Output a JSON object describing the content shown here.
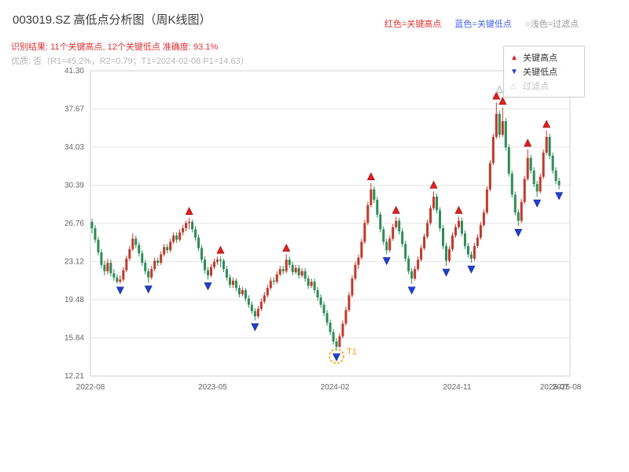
{
  "header": {
    "title": "003019.SZ 高低点分析图（周K线图）",
    "legend_inline": {
      "high": "红色=关键高点",
      "low": "蓝色=关键低点",
      "filtered": "○浅色=过滤点"
    },
    "result_line": "识别结果: 11个关键高点, 12个关键低点  准确度: 93.1%",
    "quality_line": "优质: 否（R1=45.2%，R2=0.79；T1=2024-02-08 P1=14.63）"
  },
  "legend_box": {
    "items": [
      {
        "label": "关键高点",
        "marker": "up-triangle"
      },
      {
        "label": "关键低点",
        "marker": "down-triangle"
      },
      {
        "label": "过滤点",
        "marker": "up-triangle-outline"
      }
    ]
  },
  "colors": {
    "up_candle": "#c0392b",
    "down_candle": "#2e8b57",
    "key_high": "#e02020",
    "key_high_edge": "#8b0000",
    "key_low": "#2040d0",
    "key_low_edge": "#102080",
    "filtered_fill": "#f8f8f8",
    "filtered_edge": "#b5b5b5",
    "grid": "#e5e5e5",
    "frame": "#d0d0d0",
    "tick_text": "#666666",
    "t1_orange": "#f59f00"
  },
  "chart_data": {
    "type": "candlestick",
    "symbol": "003019.SZ",
    "frequency": "weekly",
    "title": "003019.SZ 高低点分析图（周K线图）",
    "grid": true,
    "ylim": [
      12.21,
      41.3
    ],
    "y_ticks": [
      "12.21",
      "15.84",
      "19.48",
      "23.12",
      "26.76",
      "30.39",
      "34.03",
      "37.67",
      "41.30"
    ],
    "x_range_weeks": 153,
    "x_ticks": [
      {
        "week": 0,
        "label": "2022-08"
      },
      {
        "week": 39,
        "label": "2023-05"
      },
      {
        "week": 78,
        "label": "2024-02"
      },
      {
        "week": 117,
        "label": "2024-11"
      },
      {
        "week": 148,
        "label": "2025-07"
      },
      {
        "week": 152,
        "label": "2025-08"
      }
    ],
    "recognition": {
      "key_high_count": 11,
      "key_low_count": 12,
      "accuracy_pct": 93.1,
      "premium": "否",
      "r1_pct": 45.2,
      "r2": 0.79,
      "t1_date": "2024-02-08",
      "p1": 14.63
    },
    "candles": [
      [
        26.9,
        27.2,
        25.8,
        26.3
      ],
      [
        26.3,
        26.6,
        24.9,
        25.2
      ],
      [
        25.2,
        25.5,
        23.7,
        24.0
      ],
      [
        24.0,
        24.3,
        22.5,
        22.8
      ],
      [
        22.8,
        23.2,
        21.8,
        22.2
      ],
      [
        22.2,
        23.4,
        21.9,
        23.0
      ],
      [
        23.0,
        23.3,
        21.7,
        22.0
      ],
      [
        22.0,
        22.4,
        21.3,
        21.6
      ],
      [
        21.6,
        21.9,
        21.0,
        21.2
      ],
      [
        21.2,
        21.8,
        21.0,
        21.4
      ],
      [
        21.4,
        22.6,
        21.2,
        22.3
      ],
      [
        22.3,
        23.7,
        22.1,
        23.4
      ],
      [
        23.4,
        24.6,
        23.2,
        24.3
      ],
      [
        24.3,
        25.8,
        24.1,
        25.3
      ],
      [
        25.3,
        25.6,
        24.4,
        24.7
      ],
      [
        24.7,
        25.0,
        23.6,
        23.9
      ],
      [
        23.9,
        24.2,
        22.7,
        23.0
      ],
      [
        23.0,
        23.3,
        21.9,
        22.2
      ],
      [
        22.2,
        22.5,
        21.1,
        21.6
      ],
      [
        21.6,
        22.7,
        21.4,
        22.4
      ],
      [
        22.4,
        23.5,
        22.2,
        23.2
      ],
      [
        23.2,
        23.5,
        22.7,
        23.0
      ],
      [
        23.0,
        24.1,
        22.8,
        23.8
      ],
      [
        23.8,
        24.8,
        23.6,
        24.5
      ],
      [
        24.5,
        24.8,
        23.9,
        24.2
      ],
      [
        24.2,
        25.3,
        24.0,
        25.0
      ],
      [
        25.0,
        25.9,
        24.8,
        25.6
      ],
      [
        25.6,
        25.9,
        24.9,
        25.2
      ],
      [
        25.2,
        26.2,
        25.0,
        25.9
      ],
      [
        25.9,
        26.6,
        25.6,
        26.3
      ],
      [
        26.3,
        27.0,
        26.0,
        26.8
      ],
      [
        26.8,
        27.3,
        26.2,
        26.9
      ],
      [
        26.9,
        27.1,
        25.9,
        26.2
      ],
      [
        26.2,
        26.5,
        25.1,
        25.4
      ],
      [
        25.4,
        25.7,
        24.1,
        24.4
      ],
      [
        24.4,
        24.7,
        23.0,
        23.3
      ],
      [
        23.3,
        23.6,
        22.0,
        22.3
      ],
      [
        22.3,
        22.6,
        21.4,
        21.8
      ],
      [
        21.8,
        22.9,
        21.6,
        22.6
      ],
      [
        22.6,
        23.4,
        22.4,
        23.1
      ],
      [
        23.1,
        23.6,
        22.8,
        23.3
      ],
      [
        23.3,
        23.6,
        22.6,
        23.2
      ],
      [
        23.2,
        23.4,
        22.1,
        22.4
      ],
      [
        22.4,
        22.7,
        21.3,
        21.6
      ],
      [
        21.6,
        21.9,
        20.6,
        20.9
      ],
      [
        20.9,
        21.6,
        20.6,
        21.3
      ],
      [
        21.3,
        21.5,
        20.3,
        20.6
      ],
      [
        20.6,
        20.9,
        19.7,
        20.0
      ],
      [
        20.0,
        20.7,
        19.8,
        20.4
      ],
      [
        20.4,
        20.6,
        19.3,
        19.6
      ],
      [
        19.6,
        19.9,
        18.7,
        19.0
      ],
      [
        19.0,
        19.3,
        18.1,
        18.4
      ],
      [
        18.4,
        18.7,
        17.5,
        17.9
      ],
      [
        17.9,
        18.9,
        17.7,
        18.6
      ],
      [
        18.6,
        19.6,
        18.4,
        19.3
      ],
      [
        19.3,
        20.2,
        19.1,
        19.9
      ],
      [
        19.9,
        20.9,
        19.7,
        20.6
      ],
      [
        20.6,
        21.6,
        20.4,
        21.3
      ],
      [
        21.3,
        21.6,
        20.9,
        21.2
      ],
      [
        21.2,
        22.2,
        21.0,
        21.9
      ],
      [
        21.9,
        22.7,
        21.7,
        22.4
      ],
      [
        22.4,
        22.7,
        21.9,
        22.2
      ],
      [
        22.2,
        23.8,
        22.0,
        23.3
      ],
      [
        23.3,
        23.6,
        22.5,
        22.8
      ],
      [
        22.8,
        23.1,
        21.8,
        22.1
      ],
      [
        22.1,
        22.8,
        21.9,
        22.5
      ],
      [
        22.5,
        22.8,
        21.5,
        21.8
      ],
      [
        21.8,
        22.5,
        21.6,
        22.2
      ],
      [
        22.2,
        22.5,
        21.2,
        21.5
      ],
      [
        21.5,
        21.8,
        20.5,
        20.8
      ],
      [
        20.8,
        21.5,
        20.6,
        21.2
      ],
      [
        21.2,
        21.5,
        20.1,
        20.4
      ],
      [
        20.4,
        20.7,
        19.4,
        19.7
      ],
      [
        19.7,
        20.0,
        18.7,
        19.0
      ],
      [
        19.0,
        19.3,
        17.9,
        18.2
      ],
      [
        18.2,
        18.5,
        17.0,
        17.3
      ],
      [
        17.3,
        17.6,
        16.1,
        16.4
      ],
      [
        16.4,
        16.7,
        15.2,
        15.5
      ],
      [
        15.5,
        15.8,
        14.63,
        15.0
      ],
      [
        15.0,
        16.3,
        14.9,
        16.0
      ],
      [
        16.0,
        17.5,
        15.8,
        17.2
      ],
      [
        17.2,
        18.8,
        17.0,
        18.5
      ],
      [
        18.5,
        20.2,
        18.3,
        19.9
      ],
      [
        19.9,
        21.8,
        19.7,
        21.5
      ],
      [
        21.5,
        23.1,
        21.3,
        22.8
      ],
      [
        22.8,
        23.8,
        22.4,
        23.5
      ],
      [
        23.5,
        25.3,
        23.3,
        25.0
      ],
      [
        25.0,
        27.1,
        24.8,
        26.8
      ],
      [
        26.8,
        28.8,
        26.6,
        28.5
      ],
      [
        28.5,
        30.6,
        28.3,
        30.0
      ],
      [
        30.0,
        30.3,
        28.7,
        29.0
      ],
      [
        29.0,
        29.3,
        27.3,
        27.6
      ],
      [
        27.6,
        27.9,
        25.9,
        26.2
      ],
      [
        26.2,
        26.5,
        24.7,
        25.0
      ],
      [
        25.0,
        25.3,
        23.8,
        24.2
      ],
      [
        24.2,
        25.6,
        24.0,
        25.3
      ],
      [
        25.3,
        26.7,
        25.1,
        26.4
      ],
      [
        26.4,
        27.4,
        26.2,
        27.0
      ],
      [
        27.0,
        27.3,
        25.7,
        26.0
      ],
      [
        26.0,
        26.3,
        24.5,
        24.8
      ],
      [
        24.8,
        25.1,
        23.1,
        23.4
      ],
      [
        23.4,
        23.7,
        21.9,
        22.2
      ],
      [
        22.2,
        22.5,
        21.0,
        21.5
      ],
      [
        21.5,
        22.7,
        21.3,
        22.4
      ],
      [
        22.4,
        23.6,
        22.2,
        23.3
      ],
      [
        23.3,
        24.7,
        23.1,
        24.4
      ],
      [
        24.4,
        25.8,
        24.2,
        25.5
      ],
      [
        25.5,
        27.1,
        25.3,
        26.8
      ],
      [
        26.8,
        28.5,
        26.6,
        28.2
      ],
      [
        28.2,
        29.8,
        28.0,
        29.3
      ],
      [
        29.3,
        29.6,
        27.7,
        28.0
      ],
      [
        28.0,
        28.3,
        26.0,
        26.3
      ],
      [
        26.3,
        26.6,
        24.3,
        24.6
      ],
      [
        24.6,
        24.9,
        22.7,
        23.2
      ],
      [
        23.2,
        24.6,
        23.0,
        24.3
      ],
      [
        24.3,
        25.9,
        24.1,
        25.6
      ],
      [
        25.6,
        26.7,
        25.4,
        26.4
      ],
      [
        26.4,
        27.4,
        26.2,
        27.0
      ],
      [
        27.0,
        27.3,
        25.5,
        25.8
      ],
      [
        25.8,
        26.1,
        24.3,
        24.6
      ],
      [
        24.6,
        24.9,
        23.5,
        23.8
      ],
      [
        23.8,
        24.1,
        23.0,
        23.4
      ],
      [
        23.4,
        24.9,
        23.2,
        24.6
      ],
      [
        24.6,
        25.7,
        24.4,
        25.4
      ],
      [
        25.4,
        26.9,
        25.2,
        26.6
      ],
      [
        26.6,
        28.1,
        26.4,
        27.8
      ],
      [
        27.8,
        30.3,
        27.6,
        30.0
      ],
      [
        30.0,
        32.8,
        29.8,
        32.5
      ],
      [
        32.5,
        35.3,
        32.3,
        35.0
      ],
      [
        35.0,
        38.3,
        34.8,
        37.2
      ],
      [
        37.2,
        37.5,
        34.9,
        35.2
      ],
      [
        35.2,
        37.8,
        35.0,
        36.5
      ],
      [
        36.5,
        36.8,
        33.7,
        34.0
      ],
      [
        34.0,
        34.3,
        31.2,
        31.5
      ],
      [
        31.5,
        31.8,
        29.2,
        29.5
      ],
      [
        29.5,
        29.8,
        27.5,
        27.8
      ],
      [
        27.8,
        28.1,
        26.5,
        27.0
      ],
      [
        27.0,
        29.1,
        26.8,
        28.8
      ],
      [
        28.8,
        31.3,
        28.6,
        31.0
      ],
      [
        31.0,
        33.8,
        30.8,
        33.0
      ],
      [
        33.0,
        33.3,
        31.5,
        31.8
      ],
      [
        31.8,
        32.1,
        30.2,
        30.5
      ],
      [
        30.5,
        30.8,
        29.3,
        29.8
      ],
      [
        29.8,
        31.5,
        29.6,
        31.2
      ],
      [
        31.2,
        33.8,
        31.0,
        33.5
      ],
      [
        33.5,
        35.6,
        33.3,
        35.0
      ],
      [
        35.0,
        35.3,
        32.9,
        33.2
      ],
      [
        33.2,
        33.5,
        31.5,
        31.8
      ],
      [
        31.8,
        32.1,
        30.5,
        30.8
      ],
      [
        30.8,
        31.1,
        30.0,
        30.4
      ]
    ],
    "key_highs": [
      {
        "week": 31,
        "price": 27.3
      },
      {
        "week": 41,
        "price": 23.6
      },
      {
        "week": 62,
        "price": 23.8
      },
      {
        "week": 89,
        "price": 30.6
      },
      {
        "week": 97,
        "price": 27.4
      },
      {
        "week": 109,
        "price": 29.8
      },
      {
        "week": 117,
        "price": 27.4
      },
      {
        "week": 129,
        "price": 38.3
      },
      {
        "week": 131,
        "price": 37.8
      },
      {
        "week": 139,
        "price": 33.8
      },
      {
        "week": 145,
        "price": 35.6
      }
    ],
    "key_lows": [
      {
        "week": 9,
        "price": 21.0
      },
      {
        "week": 18,
        "price": 21.1
      },
      {
        "week": 37,
        "price": 21.4
      },
      {
        "week": 52,
        "price": 17.5
      },
      {
        "week": 78,
        "price": 14.63
      },
      {
        "week": 94,
        "price": 23.8
      },
      {
        "week": 102,
        "price": 21.0
      },
      {
        "week": 113,
        "price": 22.7
      },
      {
        "week": 121,
        "price": 23.0
      },
      {
        "week": 136,
        "price": 26.5
      },
      {
        "week": 142,
        "price": 29.3
      },
      {
        "week": 149,
        "price": 30.0
      }
    ],
    "filtered_points": [
      {
        "week": 130,
        "price": 39.0
      }
    ],
    "t1_annotation": {
      "week": 78,
      "price": 14.63,
      "label": "T1"
    }
  }
}
